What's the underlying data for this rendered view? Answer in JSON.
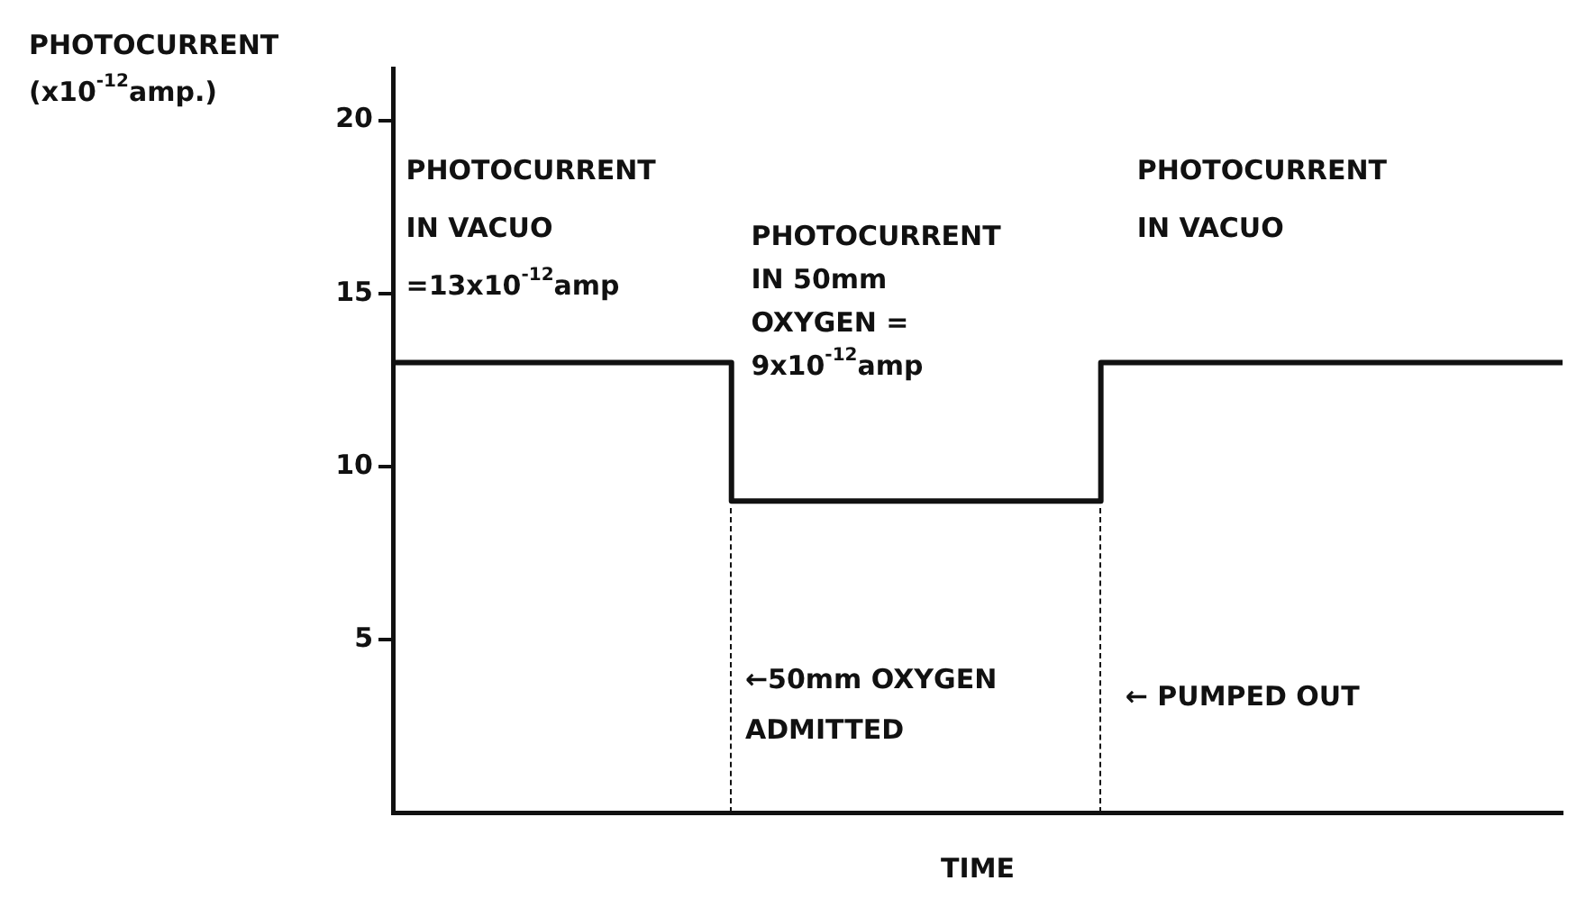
{
  "chart_data": {
    "type": "step",
    "ylabel": "PHOTOCURRENT (x10$^{-12}$amp.)",
    "xlabel": "TIME",
    "categories": [
      null,
      null,
      null,
      null,
      null,
      null,
      null,
      null,
      null,
      null,
      null,
      null,
      null,
      null,
      null,
      null,
      null,
      null,
      null,
      null
    ],
    "values": [
      13,
      13,
      13,
      13,
      13,
      13,
      9,
      9,
      9,
      9,
      9,
      9,
      13,
      13,
      13,
      13,
      13,
      13,
      13,
      13
    ],
    "color": "#111111",
    "ylim": [
      0,
      21.5
    ],
    "yticks": [
      5,
      10,
      15,
      20
    ],
    "tick_labels": "y",
    "grid": false,
    "legend": false,
    "marker": "none",
    "line_style": "solid",
    "annotations": [
      "PHOTOCURRENT IN VACUO =13x10$^{-12}$amp",
      "PHOTOCURRENT IN 50mm OXYGEN = 9x10$^{-12}$amp",
      "PHOTOCURRENT IN VACUO",
      "←50mm OXYGEN ADMITTED",
      "← PUMPED OUT"
    ]
  }
}
